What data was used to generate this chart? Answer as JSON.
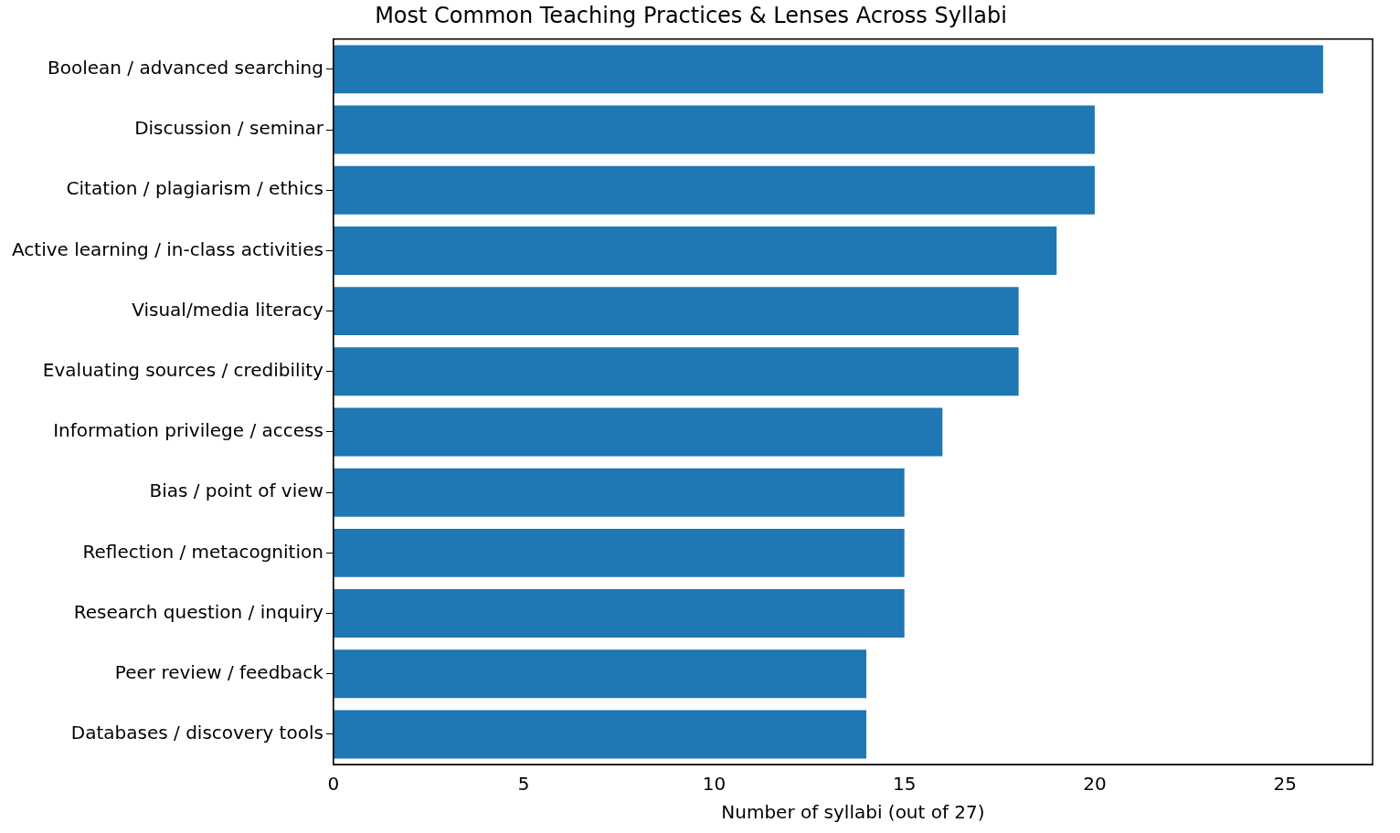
{
  "chart_data": {
    "type": "bar",
    "orientation": "horizontal",
    "title": "Most Common Teaching Practices & Lenses Across Syllabi",
    "xlabel": "Number of syllabi (out of 27)",
    "categories": [
      "Boolean / advanced searching",
      "Discussion / seminar",
      "Citation / plagiarism / ethics",
      "Active learning / in-class activities",
      "Visual/media literacy",
      "Evaluating sources / credibility",
      "Information privilege / access",
      "Bias / point of view",
      "Reflection / metacognition",
      "Research question / inquiry",
      "Peer review / feedback",
      "Databases / discovery tools"
    ],
    "values": [
      26,
      20,
      20,
      19,
      18,
      18,
      16,
      15,
      15,
      15,
      14,
      14
    ],
    "color": "#1f77b4",
    "xlim": [
      0,
      27.3
    ],
    "xticks": [
      0,
      5,
      10,
      15,
      20,
      25
    ],
    "grid": false,
    "legend": false
  }
}
